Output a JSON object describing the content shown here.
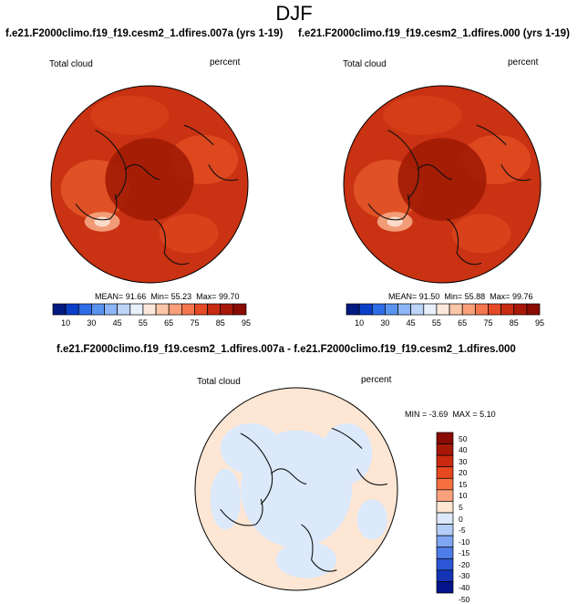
{
  "page_title": "DJF",
  "chart_data": [
    {
      "type": "heatmap",
      "projection": "polar-stereographic-north",
      "title": "f.e21.F2000climo.f19_f19.cesm2_1.dfires.007a (yrs 1-19)",
      "variable_label": "Total cloud",
      "units": "percent",
      "stats": {
        "mean_label": "MEAN=",
        "mean": "91.66",
        "min_label": "Min=",
        "min": "55.23",
        "max_label": "Max=",
        "max": "99.70"
      },
      "colorbar": {
        "orientation": "horizontal",
        "ticks": [
          "10",
          "30",
          "45",
          "55",
          "65",
          "75",
          "85",
          "95"
        ]
      }
    },
    {
      "type": "heatmap",
      "projection": "polar-stereographic-north",
      "title": "f.e21.F2000climo.f19_f19.cesm2_1.dfires.000 (yrs 1-19)",
      "variable_label": "Total cloud",
      "units": "percent",
      "stats": {
        "mean_label": "MEAN=",
        "mean": "91.50",
        "min_label": "Min=",
        "min": "55.88",
        "max_label": "Max=",
        "max": "99.76"
      },
      "colorbar": {
        "orientation": "horizontal",
        "ticks": [
          "10",
          "30",
          "45",
          "55",
          "65",
          "75",
          "85",
          "95"
        ]
      }
    },
    {
      "type": "heatmap",
      "projection": "polar-stereographic-north",
      "title": "f.e21.F2000climo.f19_f19.cesm2_1.dfires.007a - f.e21.F2000climo.f19_f19.cesm2_1.dfires.000",
      "variable_label": "Total cloud",
      "units": "percent",
      "stats": {
        "min_label": "MIN =",
        "min": "-3.69",
        "max_label": "MAX =",
        "max": "5.10"
      },
      "colorbar": {
        "orientation": "vertical",
        "ticks": [
          "50",
          "40",
          "30",
          "20",
          "15",
          "10",
          "5",
          "0",
          "-5",
          "-10",
          "-15",
          "-20",
          "-30",
          "-40",
          "-50"
        ]
      }
    }
  ],
  "colors": {
    "abs_scale": [
      "#001a80",
      "#0a3fc8",
      "#2e6ce8",
      "#5a93f0",
      "#8cb6f5",
      "#bcd5f8",
      "#e8f0fb",
      "#fde9dc",
      "#fcc6a8",
      "#f9a07a",
      "#f3764e",
      "#e44a25",
      "#c82a12",
      "#a81808",
      "#8a0c02"
    ],
    "diff_scale": [
      "#8a0c02",
      "#a81808",
      "#cc2a10",
      "#e8481f",
      "#f5703e",
      "#fba27d",
      "#fde6d3",
      "#dbe9fb",
      "#b2cdf7",
      "#7fa6f2",
      "#4f7de8",
      "#2b57d6",
      "#1434b5",
      "#04148a"
    ],
    "map_field": "#c93212",
    "map_core": "#a21b06",
    "diff_pos": "#fde6d3",
    "diff_neg": "#dbe9fb"
  }
}
